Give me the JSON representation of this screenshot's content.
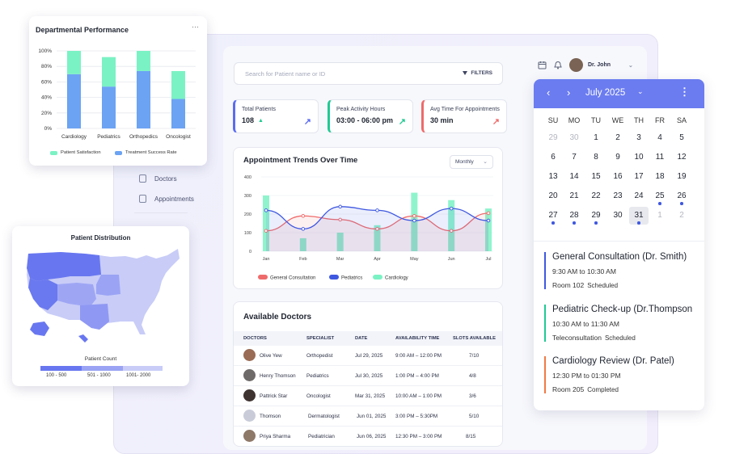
{
  "colors": {
    "primary": "#6b7cf0",
    "blue": "#3f58e0",
    "green": "#22c993",
    "red": "#ef6b6b",
    "bar_green": "#7bf2c4",
    "bar_blue": "#6ca3f3"
  },
  "sidebar": {
    "items": [
      {
        "label": "Doctors",
        "icon": "doctor-icon"
      },
      {
        "label": "Appointments",
        "icon": "document-icon"
      }
    ]
  },
  "search": {
    "placeholder": "Search for Patient name or ID",
    "filters_label": "FILTERS"
  },
  "user": {
    "name": "Dr. John"
  },
  "stats": [
    {
      "title": "Total Patients",
      "value": "108",
      "arrow": "↗",
      "color": "#5b6cf0"
    },
    {
      "title": "Peak Activity Hours",
      "value": "03:00 - 06:00 pm",
      "arrow": "↗",
      "color": "#22c993"
    },
    {
      "title": "Avg Time For Appointments",
      "value": "30 min",
      "arrow": "↗",
      "color": "#ef6b6b"
    }
  ],
  "trends": {
    "title": "Appointment Trends Over Time",
    "period": "Monthly"
  },
  "chart_data": [
    {
      "type": "bar",
      "title": "Departmental Performance",
      "categories": [
        "Cardiology",
        "Pediatrics",
        "Orthopedics",
        "Oncologist"
      ],
      "y_ticks": [
        "100%",
        "80%",
        "60%",
        "40%",
        "20%",
        "0%"
      ],
      "ylim": [
        0,
        100
      ],
      "stacked": true,
      "series": [
        {
          "name": "Treatment Success Rate",
          "values": [
            70,
            54,
            74,
            38
          ]
        },
        {
          "name": "Patient Satisfaction",
          "values": [
            30,
            38,
            26,
            36
          ]
        }
      ]
    },
    {
      "type": "line",
      "title": "Appointment Trends Over Time",
      "categories": [
        "Jan",
        "Feb",
        "Mar",
        "Apr",
        "May",
        "Jun",
        "Jul"
      ],
      "y_ticks": [
        0,
        100,
        200,
        300,
        400
      ],
      "ylim": [
        0,
        400
      ],
      "series": [
        {
          "name": "General Consultation",
          "values": [
            110,
            190,
            170,
            120,
            190,
            110,
            205
          ]
        },
        {
          "name": "Pediatrics",
          "values": [
            220,
            120,
            240,
            220,
            165,
            230,
            165
          ]
        },
        {
          "name": "Cardiology",
          "values": [
            300,
            70,
            100,
            140,
            315,
            275,
            230
          ]
        }
      ],
      "legend": "bottom"
    },
    {
      "type": "map",
      "title": "Patient Distribution",
      "legend_title": "Patient Count",
      "legend": [
        "100 - 500",
        "501 - 1000",
        "1001- 2000"
      ]
    }
  ],
  "doctors": {
    "title": "Available Doctors",
    "columns": [
      "DOCTORS",
      "SPECIALIST",
      "DATE",
      "AVAILABILITY TIME",
      "SLOTS AVAILABLE"
    ],
    "rows": [
      {
        "name": "Olive Yew",
        "spec": "Orthopedist",
        "date": "Jul 29, 2025",
        "time": "9:00 AM – 12:00 PM",
        "slots": "7/10"
      },
      {
        "name": "Henry Thomson",
        "spec": "Pediatrics",
        "date": "Jul 30, 2025",
        "time": "1:00 PM – 4:00 PM",
        "slots": "4/8"
      },
      {
        "name": "Pattrick Star",
        "spec": "Oncologist",
        "date": "Mar 31, 2025",
        "time": "10:00 AM – 1:00 PM",
        "slots": "3/6"
      },
      {
        "name": "Thomson",
        "spec": "Dermatologist",
        "date": "Jun 01, 2025",
        "time": "3:00 PM – 5:30PM",
        "slots": "5/10"
      },
      {
        "name": "Priya Sharma",
        "spec": "Pediatrician",
        "date": "Jun 06, 2025",
        "time": "12:30 PM – 3:00 PM",
        "slots": "8/15"
      }
    ]
  },
  "calendar": {
    "month": "July 2025",
    "weekdays": [
      "SU",
      "MO",
      "TU",
      "WE",
      "TH",
      "FR",
      "SA"
    ],
    "weeks": [
      [
        "29",
        "30",
        "1",
        "2",
        "3",
        "4",
        "5"
      ],
      [
        "6",
        "7",
        "8",
        "9",
        "10",
        "11",
        "12"
      ],
      [
        "13",
        "14",
        "15",
        "16",
        "17",
        "18",
        "19"
      ],
      [
        "20",
        "21",
        "22",
        "23",
        "24",
        "25",
        "26"
      ],
      [
        "27",
        "28",
        "29",
        "30",
        "31",
        "1",
        "2"
      ]
    ],
    "selected": "31"
  },
  "appointments": [
    {
      "title": "General Consultation (Dr. Smith)",
      "time": "9:30 AM to 10:30 AM",
      "location": "Room 102",
      "status": "Scheduled",
      "color": "#3f58e0"
    },
    {
      "title": "Pediatric Check-up (Dr.Thompson",
      "time": "10:30 AM to 11:30 AM",
      "location": "Teleconsultation",
      "status": "Scheduled",
      "color": "#22c993"
    },
    {
      "title": "Cardiology Review (Dr. Patel)",
      "time": "12:30 PM to 01:30 PM",
      "location": "Room 205",
      "status": "Completed",
      "color": "#f07a45"
    }
  ]
}
